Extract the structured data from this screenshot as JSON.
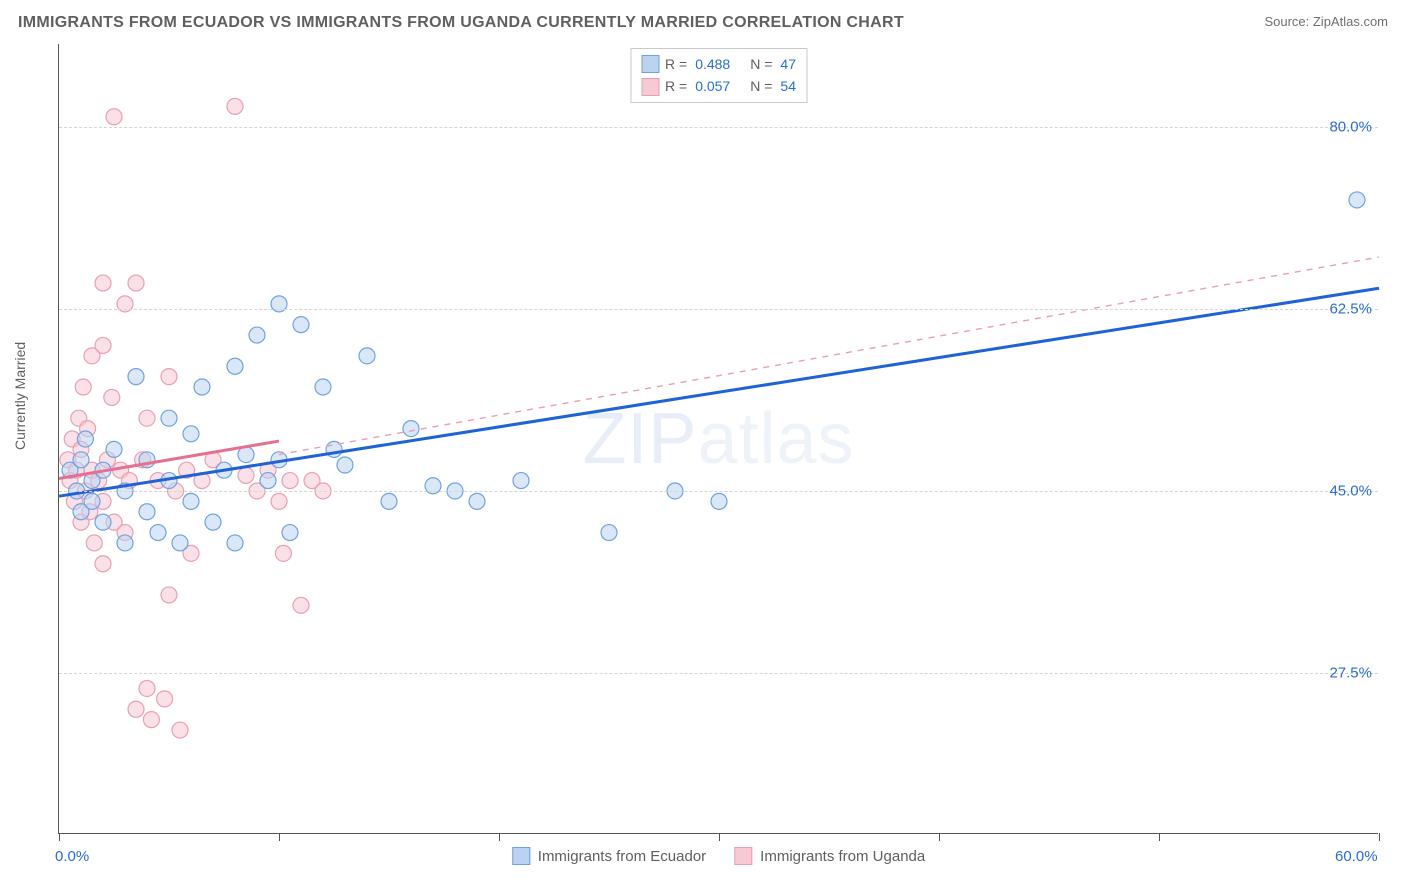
{
  "header": {
    "title": "IMMIGRANTS FROM ECUADOR VS IMMIGRANTS FROM UGANDA CURRENTLY MARRIED CORRELATION CHART",
    "source": "Source: ZipAtlas.com"
  },
  "chart": {
    "type": "scatter",
    "ylabel": "Currently Married",
    "watermark": "ZIPatlas",
    "xlim": [
      0,
      60
    ],
    "ylim": [
      12,
      88
    ],
    "x_ticks": [
      0,
      10,
      20,
      30,
      40,
      50,
      60
    ],
    "x_tick_labels": {
      "0": "0.0%",
      "60": "60.0%"
    },
    "y_gridlines": [
      27.5,
      45.0,
      62.5,
      80.0
    ],
    "y_tick_labels": [
      "27.5%",
      "45.0%",
      "62.5%",
      "80.0%"
    ],
    "background_color": "#ffffff",
    "grid_color": "#d5d5d5",
    "axis_color": "#555555",
    "marker_radius": 8,
    "marker_opacity": 0.55,
    "series": [
      {
        "name": "Immigrants from Ecuador",
        "color_fill": "#b9d3f0",
        "color_stroke": "#6fa3e0",
        "r_value": "0.488",
        "n_value": "47",
        "trend_solid": {
          "x1": 0,
          "y1": 44.5,
          "x2": 60,
          "y2": 64.5,
          "color": "#1f63d6",
          "width": 3
        },
        "trend_dash": {
          "x1": 10,
          "y1": 48.5,
          "x2": 60,
          "y2": 67.5,
          "color": "#e99fb2",
          "width": 1.4
        },
        "points": [
          [
            0.5,
            47
          ],
          [
            0.8,
            45
          ],
          [
            1,
            43
          ],
          [
            1,
            48
          ],
          [
            1.2,
            50
          ],
          [
            1.5,
            46
          ],
          [
            1.5,
            44
          ],
          [
            2,
            47
          ],
          [
            2,
            42
          ],
          [
            2.5,
            49
          ],
          [
            3,
            40
          ],
          [
            3,
            45
          ],
          [
            3.5,
            56
          ],
          [
            4,
            48
          ],
          [
            4,
            43
          ],
          [
            4.5,
            41
          ],
          [
            5,
            46
          ],
          [
            5,
            52
          ],
          [
            5.5,
            40
          ],
          [
            6,
            44
          ],
          [
            6,
            50.5
          ],
          [
            6.5,
            55
          ],
          [
            7,
            42
          ],
          [
            7.5,
            47
          ],
          [
            8,
            57
          ],
          [
            8,
            40
          ],
          [
            8.5,
            48.5
          ],
          [
            9,
            60
          ],
          [
            9.5,
            46
          ],
          [
            10,
            63
          ],
          [
            10,
            48
          ],
          [
            10.5,
            41
          ],
          [
            11,
            61
          ],
          [
            12,
            55
          ],
          [
            12.5,
            49
          ],
          [
            13,
            47.5
          ],
          [
            14,
            58
          ],
          [
            15,
            44
          ],
          [
            16,
            51
          ],
          [
            17,
            45.5
          ],
          [
            18,
            45
          ],
          [
            19,
            44
          ],
          [
            21,
            46
          ],
          [
            25,
            41
          ],
          [
            28,
            45
          ],
          [
            30,
            44
          ],
          [
            59,
            73
          ]
        ]
      },
      {
        "name": "Immigrants from Uganda",
        "color_fill": "#f6c9d4",
        "color_stroke": "#e99fb2",
        "r_value": "0.057",
        "n_value": "54",
        "trend_solid": {
          "x1": 0,
          "y1": 46.2,
          "x2": 10,
          "y2": 49.8,
          "color": "#e76f8f",
          "width": 3
        },
        "points": [
          [
            0.4,
            48
          ],
          [
            0.5,
            46
          ],
          [
            0.6,
            50
          ],
          [
            0.7,
            44
          ],
          [
            0.8,
            47
          ],
          [
            0.9,
            52
          ],
          [
            1,
            49
          ],
          [
            1,
            42
          ],
          [
            1.1,
            55
          ],
          [
            1.2,
            45
          ],
          [
            1.3,
            51
          ],
          [
            1.4,
            43
          ],
          [
            1.5,
            47
          ],
          [
            1.5,
            58
          ],
          [
            1.6,
            40
          ],
          [
            1.8,
            46
          ],
          [
            2,
            59
          ],
          [
            2,
            44
          ],
          [
            2,
            65
          ],
          [
            2,
            38
          ],
          [
            2.2,
            48
          ],
          [
            2.4,
            54
          ],
          [
            2.5,
            42
          ],
          [
            2.5,
            81
          ],
          [
            2.8,
            47
          ],
          [
            3,
            63
          ],
          [
            3,
            41
          ],
          [
            3.2,
            46
          ],
          [
            3.5,
            65
          ],
          [
            3.5,
            24
          ],
          [
            3.8,
            48
          ],
          [
            4,
            26
          ],
          [
            4,
            52
          ],
          [
            4.2,
            23
          ],
          [
            4.5,
            46
          ],
          [
            4.8,
            25
          ],
          [
            5,
            56
          ],
          [
            5,
            35
          ],
          [
            5.3,
            45
          ],
          [
            5.5,
            22
          ],
          [
            5.8,
            47
          ],
          [
            6,
            39
          ],
          [
            6.5,
            46
          ],
          [
            7,
            48
          ],
          [
            8,
            82
          ],
          [
            8.5,
            46.5
          ],
          [
            9,
            45
          ],
          [
            9.5,
            47
          ],
          [
            10,
            44
          ],
          [
            10.2,
            39
          ],
          [
            10.5,
            46
          ],
          [
            11,
            34
          ],
          [
            11.5,
            46
          ],
          [
            12,
            45
          ]
        ]
      }
    ],
    "legend_top": {
      "rows": [
        {
          "swatch_fill": "#b9d3f0",
          "swatch_stroke": "#6fa3e0",
          "r": "0.488",
          "n": "47"
        },
        {
          "swatch_fill": "#f6c9d4",
          "swatch_stroke": "#e99fb2",
          "r": "0.057",
          "n": "54"
        }
      ]
    },
    "legend_bottom": [
      {
        "swatch_fill": "#b9d3f0",
        "swatch_stroke": "#6fa3e0",
        "label": "Immigrants from Ecuador"
      },
      {
        "swatch_fill": "#f6c9d4",
        "swatch_stroke": "#e99fb2",
        "label": "Immigrants from Uganda"
      }
    ]
  }
}
